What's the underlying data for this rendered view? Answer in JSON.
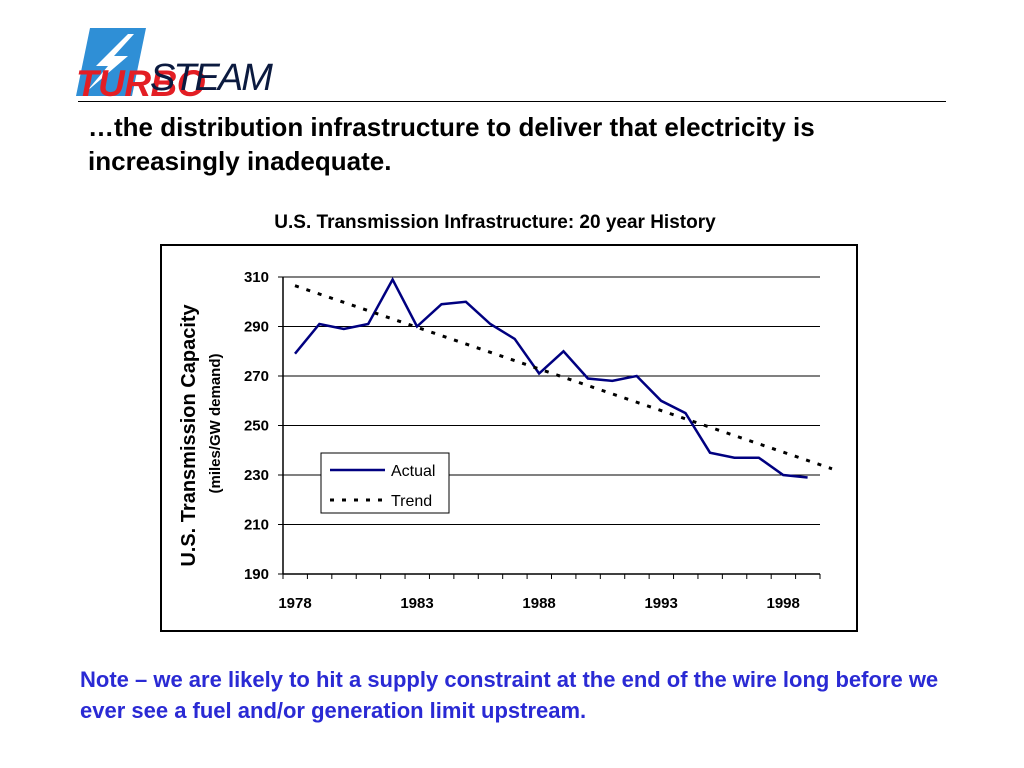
{
  "logo": {
    "top_word": "TURBO",
    "bottom_word": "STEAM",
    "brand_red": "#e31e24",
    "brand_blue": "#2f8fd6",
    "icon": "lightning-bolt-icon"
  },
  "headline": "…the distribution infrastructure to deliver that electricity is increasingly inadequate.",
  "note": "Note – we are likely to hit a supply constraint at the end of the wire long before we ever see a fuel and/or generation limit upstream.",
  "chart_data": {
    "type": "line",
    "title": "U.S. Transmission Infrastructure: 20 year History",
    "ylabel": "U.S. Transmission Capacity",
    "ylabel_sub": "(miles/GW demand)",
    "xlabel": "",
    "ylim": [
      190,
      310
    ],
    "yticks": [
      190,
      210,
      230,
      250,
      270,
      290,
      310
    ],
    "xlim": [
      1978,
      1999
    ],
    "xticks": [
      1978,
      1983,
      1988,
      1993,
      1998
    ],
    "grid": "horizontal",
    "legend_position": "inside-lower-left",
    "series": [
      {
        "name": "Actual",
        "style": "solid",
        "color": "#000080",
        "x": [
          1978,
          1979,
          1980,
          1981,
          1982,
          1983,
          1984,
          1985,
          1986,
          1987,
          1988,
          1989,
          1990,
          1991,
          1992,
          1993,
          1994,
          1995,
          1996,
          1997,
          1998,
          1999
        ],
        "values": [
          279,
          291,
          289,
          291,
          309,
          290,
          299,
          300,
          291,
          285,
          271,
          280,
          269,
          268,
          270,
          260,
          255,
          239,
          237,
          237,
          230,
          229
        ]
      },
      {
        "name": "Trend",
        "style": "dotted",
        "color": "#000000",
        "x": [
          1978,
          2000
        ],
        "values": [
          306.5,
          232.5
        ]
      }
    ]
  }
}
